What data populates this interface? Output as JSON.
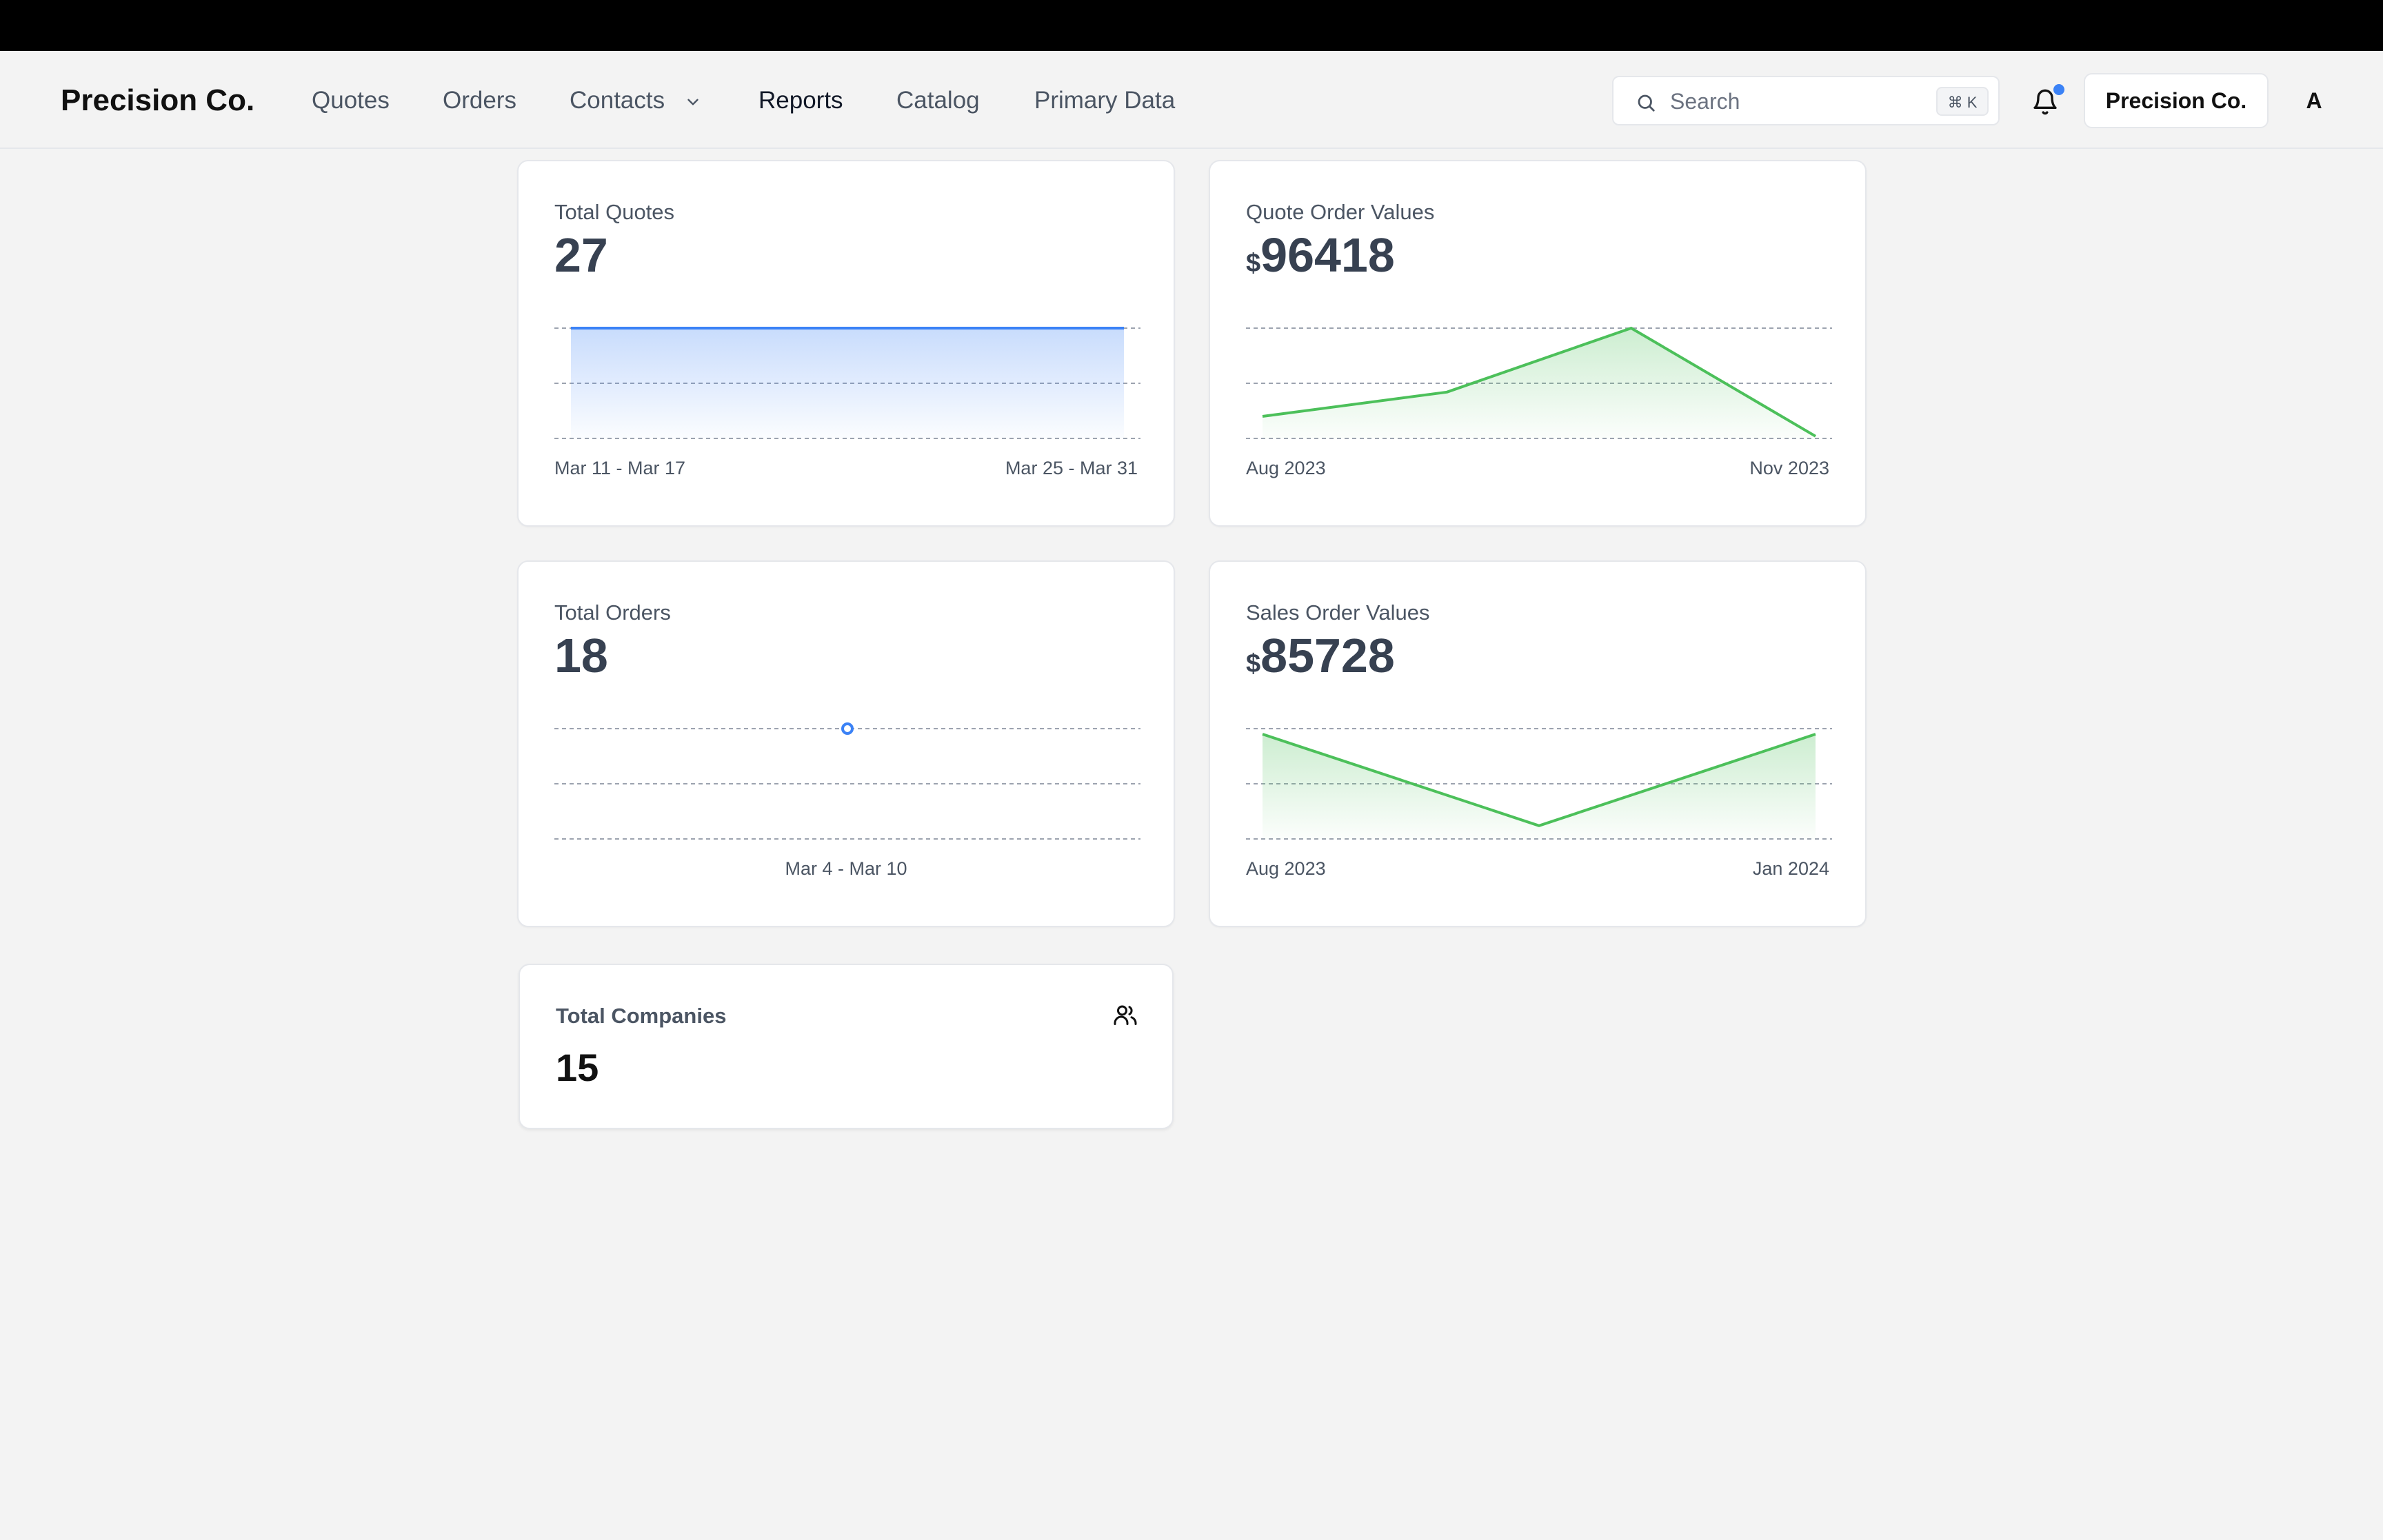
{
  "app": {
    "brand": "Precision Co."
  },
  "nav": {
    "items": [
      {
        "label": "Quotes"
      },
      {
        "label": "Orders"
      },
      {
        "label": "Contacts"
      },
      {
        "label": "Reports",
        "active": true
      },
      {
        "label": "Catalog"
      },
      {
        "label": "Primary Data"
      }
    ]
  },
  "search": {
    "placeholder": "Search",
    "shortcut": "⌘ K"
  },
  "notifications": {
    "has_unread": true
  },
  "account": {
    "button_label": "Precision Co.",
    "avatar_initial": "A"
  },
  "colors": {
    "blue": "#3b82f6",
    "green": "#4cc05a",
    "text": "#374151"
  },
  "cards": {
    "total_quotes": {
      "label": "Total Quotes",
      "value": "27",
      "x_start": "Mar 11 - Mar 17",
      "x_end": "Mar 25 - Mar 31"
    },
    "quote_order_values": {
      "label": "Quote Order Values",
      "currency": "$",
      "value": "96418",
      "x_start": "Aug 2023",
      "x_end": "Nov 2023"
    },
    "total_orders": {
      "label": "Total Orders",
      "value": "18",
      "x_single": "Mar 4 - Mar 10"
    },
    "sales_order_values": {
      "label": "Sales Order Values",
      "currency": "$",
      "value": "85728",
      "x_start": "Aug 2023",
      "x_end": "Jan 2024"
    },
    "total_companies": {
      "label": "Total Companies",
      "value": "15",
      "icon": "users-icon"
    }
  },
  "chart_data": [
    {
      "type": "area",
      "title": "Total Quotes",
      "x": [
        "Mar 11 - Mar 17",
        "Mar 25 - Mar 31"
      ],
      "values": [
        1,
        1
      ],
      "color": "#3b82f6"
    },
    {
      "type": "area",
      "title": "Quote Order Values",
      "x": [
        "Aug 2023",
        "",
        "",
        "Nov 2023"
      ],
      "values": [
        0.2,
        0.42,
        1.0,
        0.02
      ],
      "color": "#4cc05a"
    },
    {
      "type": "scatter",
      "title": "Total Orders",
      "x": [
        "Mar 4 - Mar 10"
      ],
      "values": [
        1
      ],
      "color": "#3b82f6"
    },
    {
      "type": "area",
      "title": "Sales Order Values",
      "x": [
        "Aug 2023",
        "",
        "Jan 2024"
      ],
      "values": [
        0.95,
        0.12,
        0.95
      ],
      "color": "#4cc05a"
    }
  ]
}
